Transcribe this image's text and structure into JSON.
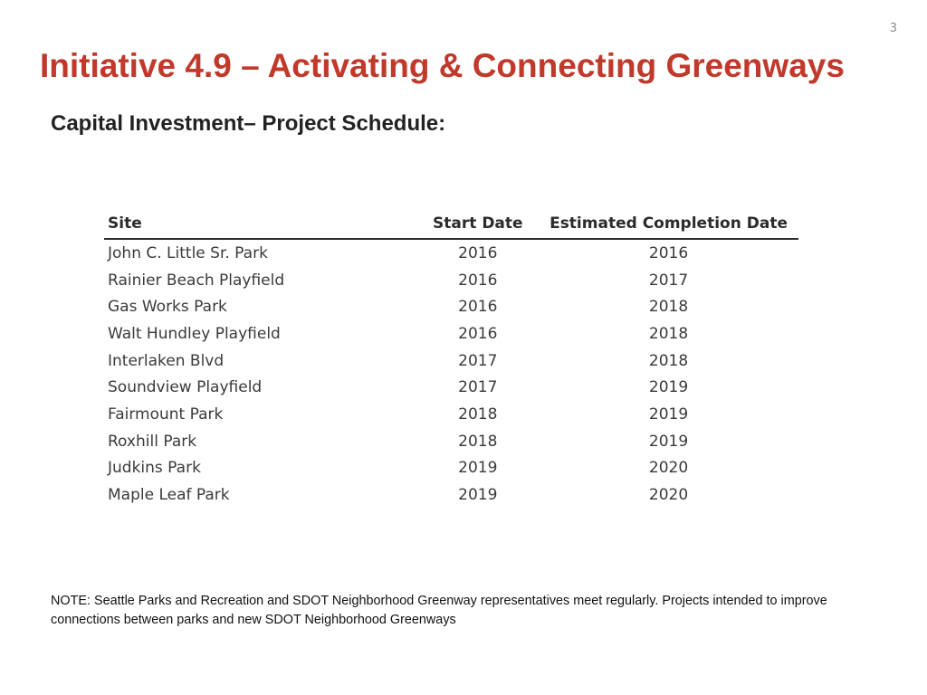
{
  "slide": {
    "number": "3",
    "title": "Initiative 4.9 – Activating & Connecting Greenways",
    "subtitle": "Capital Investment– Project Schedule:"
  },
  "table": {
    "headers": {
      "site": "Site",
      "start": "Start Date",
      "completion": "Estimated Completion Date"
    },
    "rows": [
      {
        "site": "John C. Little Sr. Park",
        "start": "2016",
        "completion": "2016"
      },
      {
        "site": "Rainier Beach Playfield",
        "start": "2016",
        "completion": "2017"
      },
      {
        "site": "Gas Works Park",
        "start": "2016",
        "completion": "2018"
      },
      {
        "site": "Walt Hundley Playfield",
        "start": "2016",
        "completion": "2018"
      },
      {
        "site": "Interlaken Blvd",
        "start": "2017",
        "completion": "2018"
      },
      {
        "site": "Soundview Playfield",
        "start": "2017",
        "completion": "2019"
      },
      {
        "site": "Fairmount Park",
        "start": "2018",
        "completion": "2019"
      },
      {
        "site": "Roxhill Park",
        "start": "2018",
        "completion": "2019"
      },
      {
        "site": "Judkins Park",
        "start": "2019",
        "completion": "2020"
      },
      {
        "site": "Maple Leaf Park",
        "start": "2019",
        "completion": "2020"
      }
    ]
  },
  "note": "NOTE: Seattle Parks and Recreation and SDOT Neighborhood Greenway representatives meet regularly.  Projects intended to improve connections between parks and new SDOT Neighborhood Greenways",
  "colors": {
    "title": "#c0392b",
    "text": "#1a1a1a",
    "table_text": "#3a3a3a"
  }
}
